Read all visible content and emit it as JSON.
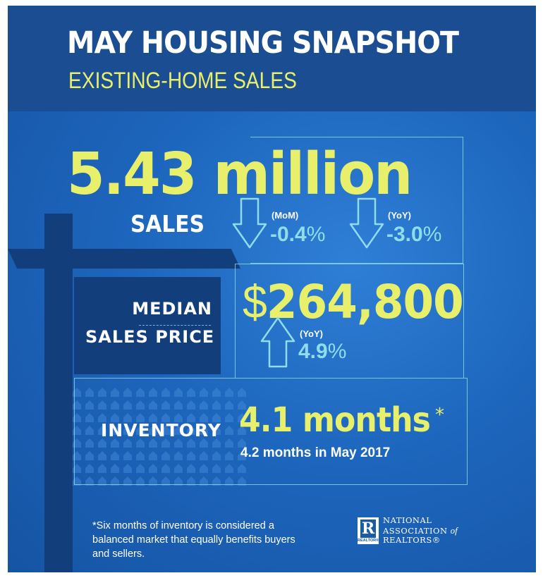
{
  "header": {
    "title": "MAY HOUSING SNAPSHOT",
    "subtitle": "EXISTING-HOME SALES"
  },
  "sales": {
    "value": "5.43 million",
    "label": "SALES",
    "mom": {
      "period": "(MoM)",
      "sign": "-",
      "number": "0.4",
      "unit": "%",
      "direction": "down"
    },
    "yoy": {
      "period": "(YoY)",
      "sign": "-",
      "number": "3.0",
      "unit": "%",
      "direction": "down"
    }
  },
  "median_price": {
    "label_line1": "MEDIAN",
    "label_line2": "SALES PRICE",
    "currency": "$",
    "value": "264,800",
    "yoy": {
      "period": "(YoY)",
      "number": "4.9",
      "unit": "%",
      "direction": "up"
    }
  },
  "inventory": {
    "label": "INVENTORY",
    "value": "4.1 months",
    "asterisk": "*",
    "prior": "4.2 months in May 2017"
  },
  "footnote": "*Six months of inventory is considered a balanced market that equally benefits buyers and sellers.",
  "logo": {
    "mark_letter": "R",
    "mark_sub": "REALTOR®",
    "line1": "NATIONAL",
    "line2_a": "ASSOCIATION",
    "line2_b": "of",
    "line3": "REALTORS®"
  },
  "colors": {
    "accent_yellow": "#e8ef6a",
    "accent_cyan": "#8fdcea",
    "header_blue": "#1a4d91",
    "dark_blue": "#123e7c"
  }
}
